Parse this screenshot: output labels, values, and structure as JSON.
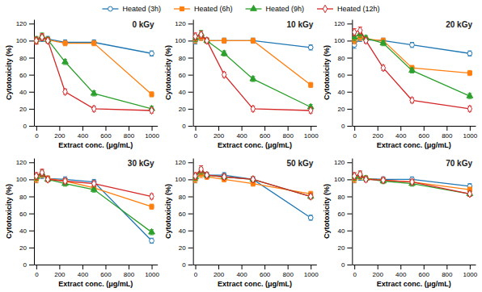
{
  "chart_data": [
    {
      "type": "line",
      "title": "0 kGy",
      "xlabel": "Extract conc. (μg/mL)",
      "ylabel": "Cytotoxicity (%)",
      "x": [
        0,
        50,
        100,
        250,
        500,
        1000
      ],
      "xlim": [
        -20,
        1050
      ],
      "xticks": [
        0,
        200,
        400,
        600,
        800,
        1000
      ],
      "ylim": [
        0,
        125
      ],
      "yticks": [
        0,
        20,
        40,
        60,
        80,
        100,
        120
      ],
      "legend": "top",
      "series": [
        {
          "name": "Heated (3h)",
          "marker": "circle-open",
          "values": [
            100,
            103,
            102,
            98,
            98,
            85
          ],
          "errors": [
            4,
            4,
            3,
            3,
            3,
            3
          ]
        },
        {
          "name": "Heated (6h)",
          "marker": "square",
          "values": [
            100,
            104,
            101,
            97,
            97,
            37
          ],
          "errors": [
            4,
            4,
            3,
            3,
            3,
            3
          ]
        },
        {
          "name": "Heated (9h)",
          "marker": "triangle",
          "values": [
            101,
            105,
            101,
            75,
            38,
            20
          ],
          "errors": [
            4,
            4,
            3,
            3,
            3,
            3
          ]
        },
        {
          "name": "Heated (12h)",
          "marker": "diamond-open",
          "values": [
            100,
            104,
            100,
            40,
            20,
            18
          ],
          "errors": [
            4,
            4,
            3,
            3,
            3,
            3
          ]
        }
      ]
    },
    {
      "type": "line",
      "title": "10 kGy",
      "xlabel": "Extract conc. (μg/mL)",
      "ylabel": "Cytotoxicity (%)",
      "x": [
        0,
        50,
        100,
        250,
        500,
        1000
      ],
      "xlim": [
        -20,
        1050
      ],
      "xticks": [
        0,
        200,
        400,
        600,
        800,
        1000
      ],
      "ylim": [
        0,
        125
      ],
      "yticks": [
        0,
        20,
        40,
        60,
        80,
        100,
        120
      ],
      "series": [
        {
          "name": "Heated (3h)",
          "marker": "circle-open",
          "values": [
            100,
            105,
            100,
            100,
            100,
            92
          ],
          "errors": [
            4,
            4,
            3,
            3,
            3,
            3
          ]
        },
        {
          "name": "Heated (6h)",
          "marker": "square",
          "values": [
            101,
            104,
            100,
            100,
            100,
            48
          ],
          "errors": [
            4,
            4,
            3,
            3,
            3,
            3
          ]
        },
        {
          "name": "Heated (9h)",
          "marker": "triangle",
          "values": [
            103,
            108,
            100,
            85,
            55,
            22
          ],
          "errors": [
            4,
            4,
            3,
            3,
            3,
            3
          ]
        },
        {
          "name": "Heated (12h)",
          "marker": "diamond-open",
          "values": [
            105,
            107,
            100,
            60,
            20,
            18
          ],
          "errors": [
            4,
            4,
            3,
            3,
            3,
            3
          ]
        }
      ]
    },
    {
      "type": "line",
      "title": "20 kGy",
      "xlabel": "Extract conc. (μg/mL)",
      "ylabel": "Cytotoxicity (%)",
      "x": [
        0,
        50,
        100,
        250,
        500,
        1000
      ],
      "xlim": [
        -20,
        1050
      ],
      "xticks": [
        0,
        200,
        400,
        600,
        800,
        1000
      ],
      "ylim": [
        0,
        125
      ],
      "yticks": [
        0,
        20,
        40,
        60,
        80,
        100,
        120
      ],
      "series": [
        {
          "name": "Heated (3h)",
          "marker": "circle-open",
          "values": [
            95,
            103,
            101,
            100,
            95,
            85
          ],
          "errors": [
            4,
            4,
            3,
            3,
            3,
            3
          ]
        },
        {
          "name": "Heated (6h)",
          "marker": "square",
          "values": [
            100,
            104,
            102,
            100,
            68,
            62
          ],
          "errors": [
            4,
            4,
            3,
            3,
            3,
            3
          ]
        },
        {
          "name": "Heated (9h)",
          "marker": "triangle",
          "values": [
            104,
            108,
            103,
            97,
            65,
            35
          ],
          "errors": [
            4,
            4,
            3,
            3,
            3,
            3
          ]
        },
        {
          "name": "Heated (12h)",
          "marker": "diamond-open",
          "values": [
            110,
            112,
            100,
            68,
            30,
            20
          ],
          "errors": [
            4,
            4,
            3,
            3,
            3,
            3
          ]
        }
      ]
    },
    {
      "type": "line",
      "title": "30 kGy",
      "xlabel": "Extract conc. (μg/mL)",
      "ylabel": "Cytotoxicity (%)",
      "x": [
        0,
        50,
        100,
        250,
        500,
        1000
      ],
      "xlim": [
        -20,
        1050
      ],
      "xticks": [
        0,
        200,
        400,
        600,
        800,
        1000
      ],
      "ylim": [
        0,
        125
      ],
      "yticks": [
        0,
        20,
        40,
        60,
        80,
        100,
        120
      ],
      "series": [
        {
          "name": "Heated (3h)",
          "marker": "circle-open",
          "values": [
            100,
            105,
            101,
            100,
            97,
            28
          ],
          "errors": [
            4,
            4,
            3,
            3,
            3,
            3
          ]
        },
        {
          "name": "Heated (6h)",
          "marker": "square",
          "values": [
            100,
            106,
            101,
            98,
            90,
            68
          ],
          "errors": [
            4,
            4,
            3,
            3,
            3,
            3
          ]
        },
        {
          "name": "Heated (9h)",
          "marker": "triangle",
          "values": [
            103,
            107,
            100,
            95,
            88,
            38
          ],
          "errors": [
            4,
            4,
            3,
            3,
            3,
            3
          ]
        },
        {
          "name": "Heated (12h)",
          "marker": "diamond-open",
          "values": [
            104,
            108,
            100,
            98,
            95,
            80
          ],
          "errors": [
            4,
            4,
            3,
            3,
            3,
            3
          ]
        }
      ]
    },
    {
      "type": "line",
      "title": "50 kGy",
      "xlabel": "Extract conc. (μg/mL)",
      "ylabel": "Cytotoxicity (%)",
      "x": [
        0,
        50,
        100,
        250,
        500,
        1000
      ],
      "xlim": [
        -20,
        1050
      ],
      "xticks": [
        0,
        200,
        400,
        600,
        800,
        1000
      ],
      "ylim": [
        0,
        125
      ],
      "yticks": [
        0,
        20,
        40,
        60,
        80,
        100,
        120
      ],
      "series": [
        {
          "name": "Heated (3h)",
          "marker": "circle-open",
          "values": [
            100,
            108,
            105,
            105,
            100,
            55
          ],
          "errors": [
            4,
            4,
            3,
            3,
            3,
            3
          ]
        },
        {
          "name": "Heated (6h)",
          "marker": "square",
          "values": [
            100,
            106,
            103,
            100,
            95,
            83
          ],
          "errors": [
            4,
            4,
            3,
            3,
            3,
            3
          ]
        },
        {
          "name": "Heated (9h)",
          "marker": "triangle",
          "values": [
            103,
            110,
            105,
            103,
            100,
            80
          ],
          "errors": [
            4,
            4,
            3,
            3,
            3,
            3
          ]
        },
        {
          "name": "Heated (12h)",
          "marker": "diamond-open",
          "values": [
            104,
            112,
            105,
            103,
            100,
            80
          ],
          "errors": [
            4,
            4,
            3,
            3,
            3,
            3
          ]
        }
      ]
    },
    {
      "type": "line",
      "title": "70 kGy",
      "xlabel": "Extract conc. (μg/mL)",
      "ylabel": "Cytotoxicity (%)",
      "x": [
        0,
        50,
        100,
        250,
        500,
        1000
      ],
      "xlim": [
        -20,
        1050
      ],
      "xticks": [
        0,
        200,
        400,
        600,
        800,
        1000
      ],
      "ylim": [
        0,
        125
      ],
      "yticks": [
        0,
        20,
        40,
        60,
        80,
        100,
        120
      ],
      "series": [
        {
          "name": "Heated (3h)",
          "marker": "circle-open",
          "values": [
            100,
            103,
            101,
            100,
            100,
            92
          ],
          "errors": [
            4,
            4,
            3,
            3,
            3,
            3
          ]
        },
        {
          "name": "Heated (6h)",
          "marker": "square",
          "values": [
            100,
            104,
            101,
            99,
            97,
            88
          ],
          "errors": [
            4,
            4,
            3,
            3,
            3,
            3
          ]
        },
        {
          "name": "Heated (9h)",
          "marker": "triangle",
          "values": [
            103,
            105,
            101,
            98,
            95,
            83
          ],
          "errors": [
            4,
            4,
            3,
            3,
            3,
            3
          ]
        },
        {
          "name": "Heated (12h)",
          "marker": "diamond-open",
          "values": [
            104,
            106,
            100,
            99,
            97,
            83
          ],
          "errors": [
            4,
            4,
            3,
            3,
            3,
            3
          ]
        }
      ]
    }
  ]
}
